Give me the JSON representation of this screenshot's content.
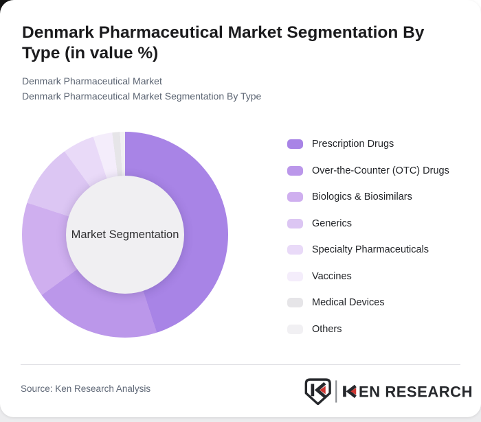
{
  "page": {
    "title": "Denmark Pharmaceutical Market Segmentation By Type (in value %)",
    "subtitles": [
      "Denmark Pharmaceutical Market",
      "Denmark Pharmaceutical Market Segmentation By Type"
    ]
  },
  "chart_data": {
    "type": "pie",
    "style": "donut",
    "title": "Denmark Pharmaceutical Market Segmentation By Type (in value %)",
    "center_label": "Market Segmentation",
    "start_angle_deg": 0,
    "direction": "clockwise",
    "legend_position": "right",
    "segments": [
      {
        "label": "Prescription Drugs",
        "value": 45,
        "color": "#a884e6"
      },
      {
        "label": "Over-the-Counter (OTC) Drugs",
        "value": 20,
        "color": "#bb97ea"
      },
      {
        "label": "Biologics & Biosimilars",
        "value": 15,
        "color": "#cfafef"
      },
      {
        "label": "Generics",
        "value": 10,
        "color": "#dcc6f3"
      },
      {
        "label": "Specialty Pharmaceuticals",
        "value": 5,
        "color": "#e9daf8"
      },
      {
        "label": "Vaccines",
        "value": 3,
        "color": "#f4edfb"
      },
      {
        "label": "Medical Devices",
        "value": 1.2,
        "color": "#e6e5e8"
      },
      {
        "label": "Others",
        "value": 0.8,
        "color": "#f1f0f3"
      }
    ]
  },
  "footer": {
    "source": "Source: Ken Research Analysis",
    "logo": {
      "brand": "KEN RESEARCH",
      "text_after_k": "EN RESEARCH"
    }
  },
  "theme": {
    "card_bg": "#ffffff",
    "page_corner_dark": "#141414",
    "page_bottom_gray": "#ececee",
    "title_color": "#1b1b1d",
    "subtitle_color": "#5b6472",
    "legend_label_color": "#222428",
    "center_circle_bg": "#f0eff2",
    "center_label_color": "#2f2f31",
    "divider_color": "#dbdbe1",
    "source_color": "#5d6675",
    "logo_dark": "#26282c",
    "logo_red": "#cf3732",
    "logo_divider": "#8a8d92"
  }
}
